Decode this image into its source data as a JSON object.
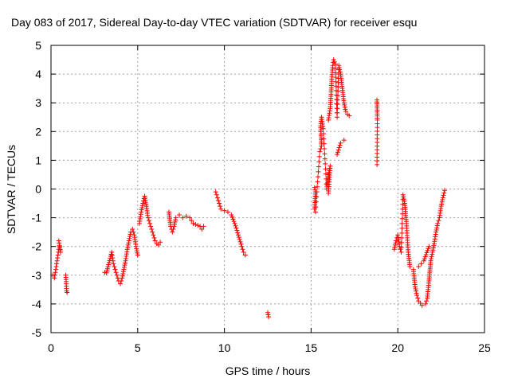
{
  "chart_data": {
    "type": "scatter",
    "title": "Day 083 of 2017, Sidereal Day-to-day VTEC variation (SDTVAR) for receiver esqu",
    "xlabel": "GPS time / hours",
    "ylabel": "SDTVAR / TECUs",
    "xlim": [
      0,
      25
    ],
    "ylim": [
      -5,
      5
    ],
    "xticks": [
      "0",
      "5",
      "10",
      "15",
      "20",
      "25"
    ],
    "yticks": [
      "-5",
      "-4",
      "-3",
      "-2",
      "-1",
      "0",
      "1",
      "2",
      "3",
      "4",
      "5"
    ],
    "grid": true,
    "marker": "plus",
    "marker_color": "#ff0000",
    "series": [
      {
        "name": "SDTVAR",
        "segments": [
          [
            [
              0.1,
              -3.0
            ],
            [
              0.2,
              -3.1
            ],
            [
              0.25,
              -2.9
            ],
            [
              0.3,
              -2.7
            ],
            [
              0.35,
              -2.5
            ],
            [
              0.4,
              -2.3
            ],
            [
              0.45,
              -2.1
            ],
            [
              0.5,
              -2.0
            ],
            [
              0.55,
              -2.2
            ],
            [
              0.45,
              -1.8
            ]
          ],
          [
            [
              0.85,
              -3.0
            ],
            [
              0.88,
              -3.3
            ],
            [
              0.9,
              -3.55
            ],
            [
              0.93,
              -3.6
            ]
          ],
          [
            [
              3.1,
              -2.9
            ],
            [
              3.2,
              -2.92
            ],
            [
              3.5,
              -2.2
            ],
            [
              3.55,
              -2.4
            ],
            [
              3.6,
              -2.6
            ],
            [
              3.7,
              -2.8
            ],
            [
              3.8,
              -3.0
            ],
            [
              3.9,
              -3.2
            ],
            [
              4.0,
              -3.3
            ],
            [
              4.1,
              -3.1
            ],
            [
              4.2,
              -2.8
            ],
            [
              4.3,
              -2.5
            ],
            [
              4.4,
              -2.1
            ],
            [
              4.5,
              -1.8
            ],
            [
              4.6,
              -1.5
            ],
            [
              4.7,
              -1.4
            ],
            [
              4.8,
              -1.6
            ],
            [
              4.9,
              -2.0
            ],
            [
              5.0,
              -2.3
            ]
          ],
          [
            [
              5.1,
              -1.2
            ],
            [
              5.2,
              -0.8
            ],
            [
              5.3,
              -0.5
            ],
            [
              5.4,
              -0.25
            ],
            [
              5.5,
              -0.6
            ],
            [
              5.6,
              -1.0
            ],
            [
              5.7,
              -1.2
            ],
            [
              5.8,
              -1.4
            ],
            [
              5.9,
              -1.6
            ],
            [
              6.0,
              -1.8
            ],
            [
              6.1,
              -1.9
            ],
            [
              6.2,
              -1.95
            ],
            [
              6.3,
              -1.85
            ]
          ],
          [
            [
              6.8,
              -0.8
            ],
            [
              6.9,
              -1.3
            ],
            [
              7.0,
              -1.5
            ],
            [
              7.1,
              -1.3
            ],
            [
              7.2,
              -1.0
            ],
            [
              7.4,
              -0.9
            ],
            [
              7.6,
              -1.0
            ],
            [
              7.8,
              -0.95
            ],
            [
              8.0,
              -1.0
            ],
            [
              8.2,
              -1.2
            ],
            [
              8.6,
              -1.3
            ],
            [
              8.7,
              -1.4
            ],
            [
              8.8,
              -1.3
            ]
          ],
          [
            [
              9.5,
              -0.1
            ],
            [
              9.6,
              -0.3
            ],
            [
              9.7,
              -0.5
            ],
            [
              9.8,
              -0.7
            ],
            [
              10.0,
              -0.75
            ],
            [
              10.2,
              -0.8
            ],
            [
              10.4,
              -0.9
            ],
            [
              10.6,
              -1.2
            ],
            [
              10.8,
              -1.6
            ],
            [
              11.0,
              -2.0
            ],
            [
              11.1,
              -2.2
            ],
            [
              11.2,
              -2.3
            ]
          ],
          [
            [
              12.5,
              -4.3
            ],
            [
              12.55,
              -4.45
            ]
          ],
          [
            [
              15.2,
              0.05
            ],
            [
              15.25,
              -0.1
            ],
            [
              15.2,
              -0.7
            ],
            [
              15.25,
              -0.8
            ],
            [
              15.5,
              1.3
            ],
            [
              15.6,
              1.5
            ],
            [
              15.55,
              2.2
            ],
            [
              15.6,
              2.5
            ],
            [
              15.7,
              2.1
            ],
            [
              15.9,
              0.0
            ],
            [
              16.0,
              0.5
            ],
            [
              16.1,
              0.8
            ],
            [
              16.0,
              -0.15
            ]
          ],
          [
            [
              16.0,
              2.4
            ],
            [
              16.1,
              2.8
            ],
            [
              16.15,
              3.3
            ],
            [
              16.2,
              3.9
            ],
            [
              16.25,
              4.3
            ],
            [
              16.3,
              4.5
            ],
            [
              16.4,
              4.35
            ],
            [
              16.5,
              2.5
            ],
            [
              16.6,
              4.3
            ],
            [
              16.7,
              4.0
            ],
            [
              16.8,
              3.5
            ],
            [
              16.9,
              3.0
            ],
            [
              17.0,
              2.7
            ],
            [
              17.1,
              2.6
            ],
            [
              17.2,
              2.55
            ],
            [
              16.5,
              1.2
            ],
            [
              16.7,
              1.6
            ],
            [
              16.9,
              1.7
            ]
          ],
          [
            [
              18.8,
              3.1
            ],
            [
              18.82,
              2.4
            ],
            [
              18.8,
              0.85
            ]
          ],
          [
            [
              19.8,
              -2.1
            ],
            [
              19.9,
              -1.8
            ],
            [
              20.0,
              -1.6
            ],
            [
              20.1,
              -2.0
            ],
            [
              20.2,
              -2.2
            ],
            [
              20.3,
              -0.2
            ],
            [
              20.4,
              -0.5
            ],
            [
              20.5,
              -1.2
            ],
            [
              20.6,
              -2.2
            ],
            [
              20.7,
              -2.7
            ],
            [
              20.9,
              -2.8
            ],
            [
              21.0,
              -3.4
            ],
            [
              21.1,
              -3.7
            ],
            [
              21.2,
              -3.9
            ],
            [
              21.4,
              -4.05
            ],
            [
              21.6,
              -4.0
            ],
            [
              21.7,
              -3.8
            ],
            [
              21.8,
              -3.2
            ],
            [
              21.9,
              -2.5
            ],
            [
              22.0,
              -2.2
            ],
            [
              22.1,
              -1.9
            ],
            [
              22.2,
              -1.5
            ],
            [
              22.3,
              -1.2
            ],
            [
              22.4,
              -1.0
            ],
            [
              22.5,
              -0.6
            ],
            [
              22.6,
              -0.3
            ],
            [
              22.7,
              -0.05
            ],
            [
              21.2,
              -2.7
            ],
            [
              21.5,
              -2.5
            ],
            [
              21.8,
              -2.0
            ]
          ]
        ]
      }
    ]
  }
}
